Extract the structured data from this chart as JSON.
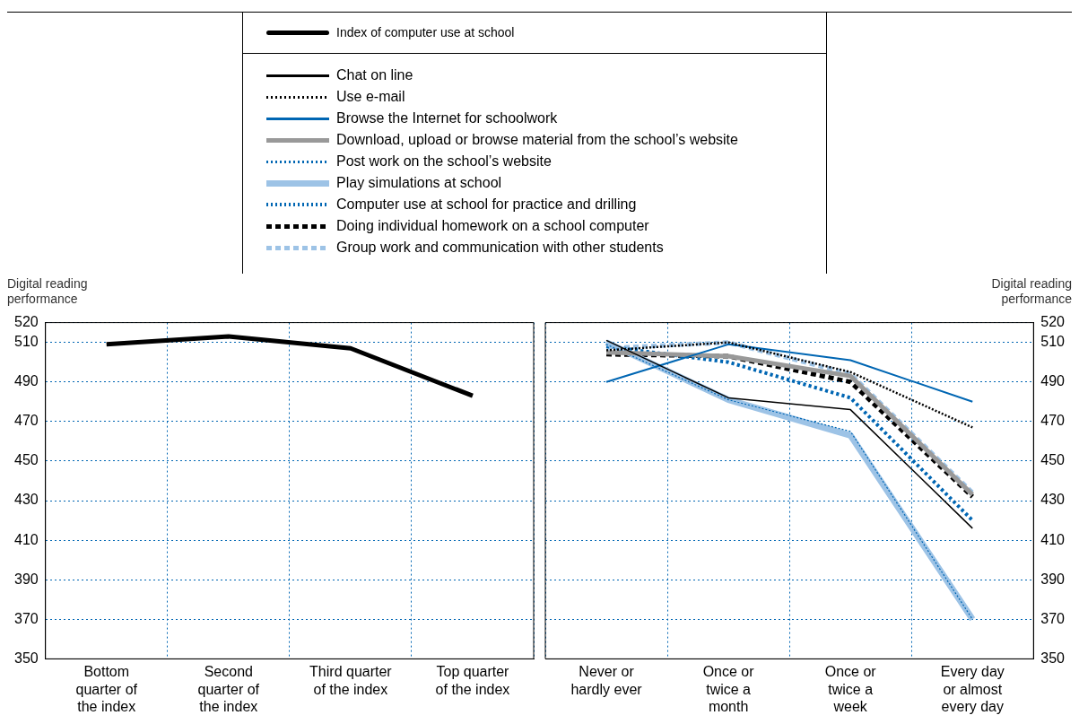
{
  "chart_data": [
    {
      "type": "line",
      "ylabel": "Digital reading performance",
      "categories": [
        "Bottom quarter of the index",
        "Second quarter of the index",
        "Third quarter of the index",
        "Top quarter of the index"
      ],
      "ylim": [
        350,
        520
      ],
      "yticks": [
        350,
        370,
        390,
        410,
        430,
        450,
        470,
        490,
        510,
        520
      ],
      "grid": true,
      "legend": "top",
      "marker": "none",
      "series": [
        {
          "name": "Index of computer use at school",
          "color": "#000000",
          "line_style": "solid",
          "values": [
            509,
            513,
            507,
            483
          ]
        }
      ]
    },
    {
      "type": "line",
      "ylabel": "Digital reading performance",
      "categories": [
        "Never or hardly ever",
        "Once or twice a month",
        "Once or twice a week",
        "Every day or almost every day"
      ],
      "ylim": [
        350,
        520
      ],
      "yticks": [
        350,
        370,
        390,
        410,
        430,
        450,
        470,
        490,
        510,
        520
      ],
      "grid": true,
      "legend": "top",
      "marker": "none",
      "series": [
        {
          "name": "Chat on line",
          "color": "#000000",
          "line_style": "solid",
          "values": [
            511,
            482,
            476,
            416
          ]
        },
        {
          "name": "Use e-mail",
          "color": "#000000",
          "line_style": "dotted",
          "values": [
            506,
            510,
            495,
            467
          ]
        },
        {
          "name": "Browse the Internet for schoolwork",
          "color": "#0066b3",
          "line_style": "solid",
          "values": [
            490,
            509,
            501,
            480
          ]
        },
        {
          "name": "Download, upload or browse material from the school’s website",
          "color": "#999999",
          "line_style": "solid",
          "values": [
            505,
            503,
            493,
            433
          ]
        },
        {
          "name": "Post work on the school’s website",
          "color": "#0066b3",
          "line_style": "dotted",
          "values": [
            509,
            481,
            465,
            370
          ]
        },
        {
          "name": "Play simulations at school",
          "color": "#9dc3e6",
          "line_style": "solid",
          "values": [
            510,
            481,
            463,
            370
          ]
        },
        {
          "name": "Computer use at school for practice and drilling",
          "color": "#0066b3",
          "line_style": "dotted",
          "values": [
            508,
            500,
            482,
            420
          ]
        },
        {
          "name": "Doing individual homework on a school computer",
          "color": "#000000",
          "line_style": "dashed",
          "values": [
            504,
            503,
            490,
            432
          ]
        },
        {
          "name": "Group work and communication with other students",
          "color": "#9dc3e6",
          "line_style": "dashed",
          "values": [
            507,
            510,
            494,
            434
          ]
        }
      ]
    }
  ]
}
